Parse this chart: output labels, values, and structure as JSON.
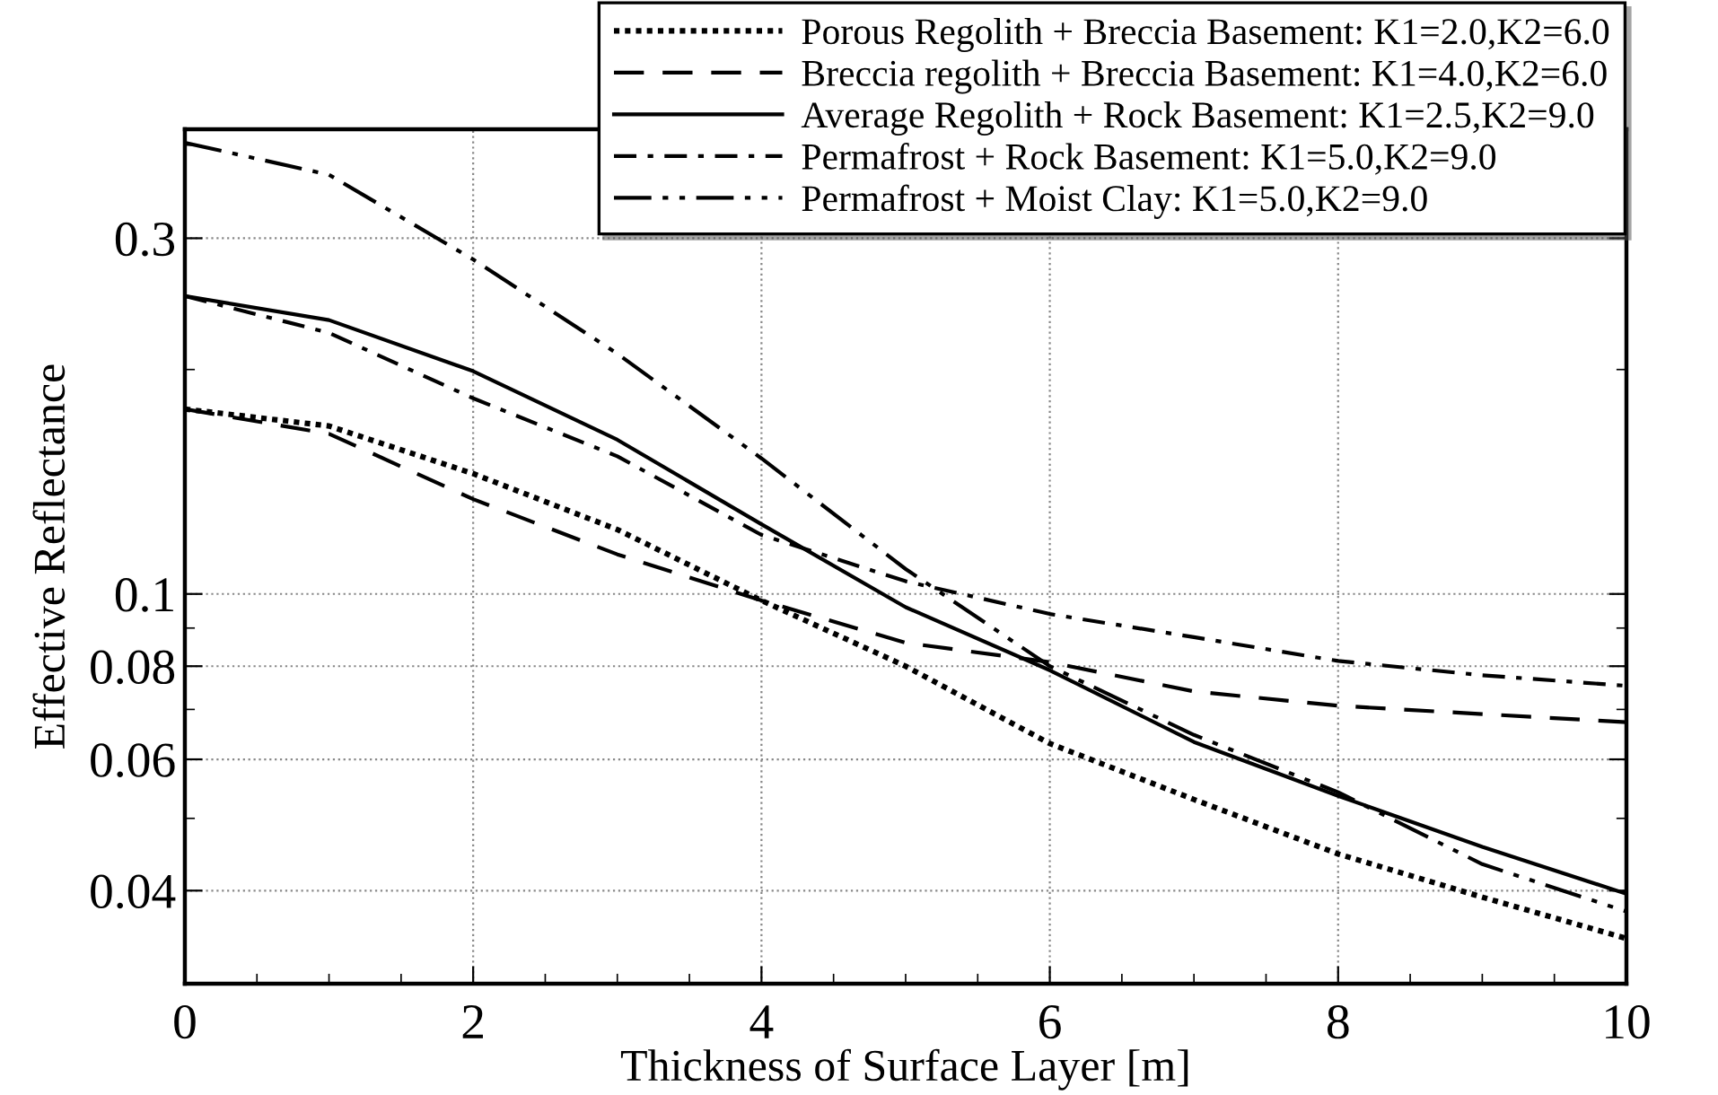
{
  "chart_data": {
    "type": "line",
    "xlabel": "Thickness of Surface Layer [m]",
    "ylabel": "Effective Reflectance",
    "x": [
      0,
      1,
      2,
      3,
      4,
      5,
      6,
      7,
      8,
      9,
      10
    ],
    "series": [
      {
        "name": "Porous Regolith + Breccia Basement: K1=2.0,K2=6.0",
        "color": "#000000",
        "line_style": "dotted",
        "values": [
          0.177,
          0.168,
          0.145,
          0.122,
          0.098,
          0.08,
          0.063,
          0.053,
          0.0448,
          0.0392,
          0.0345
        ]
      },
      {
        "name": "Breccia regolith + Breccia Basement: K1=4.0,K2=6.0",
        "color": "#000000",
        "line_style": "dashed",
        "values": [
          0.177,
          0.164,
          0.134,
          0.113,
          0.098,
          0.086,
          0.081,
          0.074,
          0.0708,
          0.069,
          0.0673
        ]
      },
      {
        "name": "Average Regolith + Rock Basement: K1=2.5,K2=9.0",
        "color": "#000000",
        "line_style": "solid",
        "values": [
          0.251,
          0.233,
          0.199,
          0.161,
          0.124,
          0.096,
          0.079,
          0.0633,
          0.0536,
          0.0458,
          0.0396
        ]
      },
      {
        "name": "Permafrost + Rock Basement: K1=5.0,K2=9.0",
        "color": "#000000",
        "line_style": "dashdot",
        "values": [
          0.251,
          0.224,
          0.183,
          0.153,
          0.12,
          0.104,
          0.094,
          0.0875,
          0.0813,
          0.0778,
          0.0753
        ]
      },
      {
        "name": "Permafrost + Moist Clay: K1=5.0,K2=9.0",
        "color": "#000000",
        "line_style": "dashdotdot",
        "values": [
          0.403,
          0.365,
          0.281,
          0.21,
          0.152,
          0.108,
          0.08,
          0.0647,
          0.0542,
          0.0434,
          0.0375
        ]
      }
    ],
    "log": "y",
    "xlim": [
      0,
      10
    ],
    "xticks": [
      0,
      2,
      4,
      6,
      8,
      10
    ],
    "ylim": [
      0.03,
      0.42
    ],
    "yticks": [
      0.04,
      0.06,
      0.08,
      0.1,
      0.3
    ],
    "grid": true,
    "legend": "top right",
    "marker": "none"
  }
}
